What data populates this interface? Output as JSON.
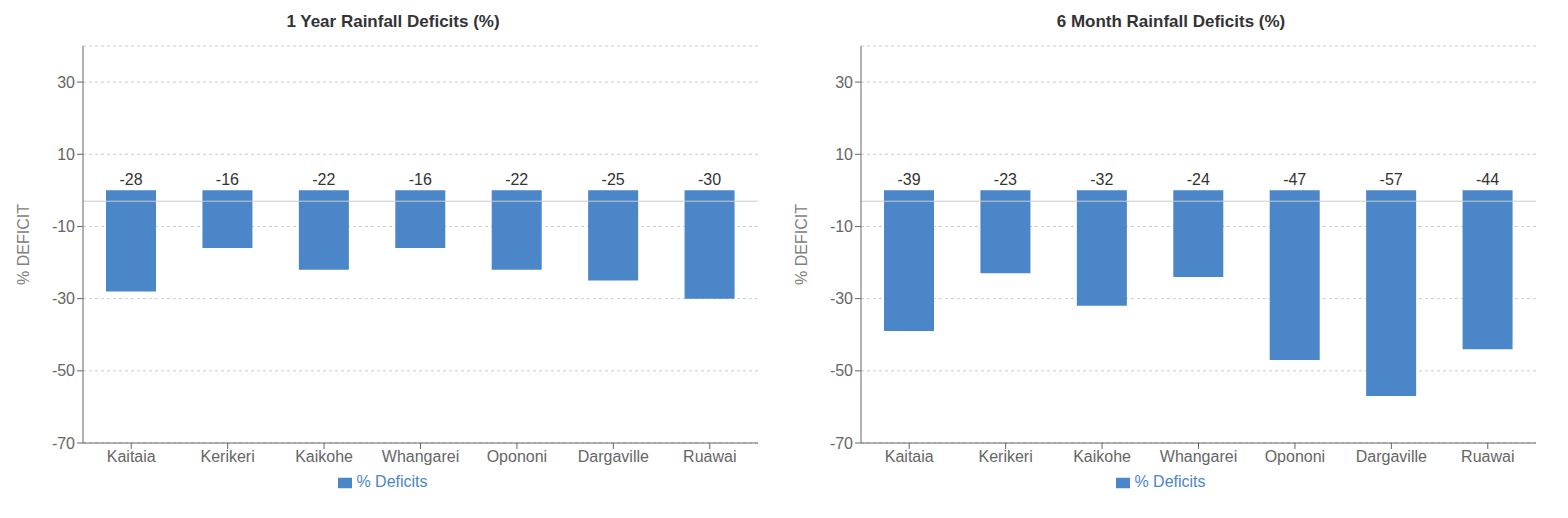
{
  "chart_data": [
    {
      "type": "bar",
      "title": "1 Year Rainfall Deficits (%)",
      "categories": [
        "Kaitaia",
        "Kerikeri",
        "Kaikohe",
        "Whangarei",
        "Opononi",
        "Dargaville",
        "Ruawai"
      ],
      "series": [
        {
          "name": "% Deficits",
          "color": "#4A86C8",
          "values": [
            -28,
            -16,
            -22,
            -16,
            -22,
            -25,
            -30
          ]
        }
      ],
      "ylabel": "% DEFICIT",
      "ylim": [
        -70,
        40
      ],
      "yticks": [
        -70,
        -50,
        -30,
        -10,
        10,
        30
      ],
      "grid": true,
      "data_labels": true,
      "reference_line": -3,
      "legend": "bottom"
    },
    {
      "type": "bar",
      "title": "6 Month Rainfall Deficits (%)",
      "categories": [
        "Kaitaia",
        "Kerikeri",
        "Kaikohe",
        "Whangarei",
        "Opononi",
        "Dargaville",
        "Ruawai"
      ],
      "series": [
        {
          "name": "% Deficits",
          "color": "#4A86C8",
          "values": [
            -39,
            -23,
            -32,
            -24,
            -47,
            -57,
            -44
          ]
        }
      ],
      "ylabel": "% DEFICIT",
      "ylim": [
        -70,
        40
      ],
      "yticks": [
        -70,
        -50,
        -30,
        -10,
        10,
        30
      ],
      "grid": true,
      "data_labels": true,
      "reference_line": -3,
      "legend": "bottom"
    }
  ]
}
